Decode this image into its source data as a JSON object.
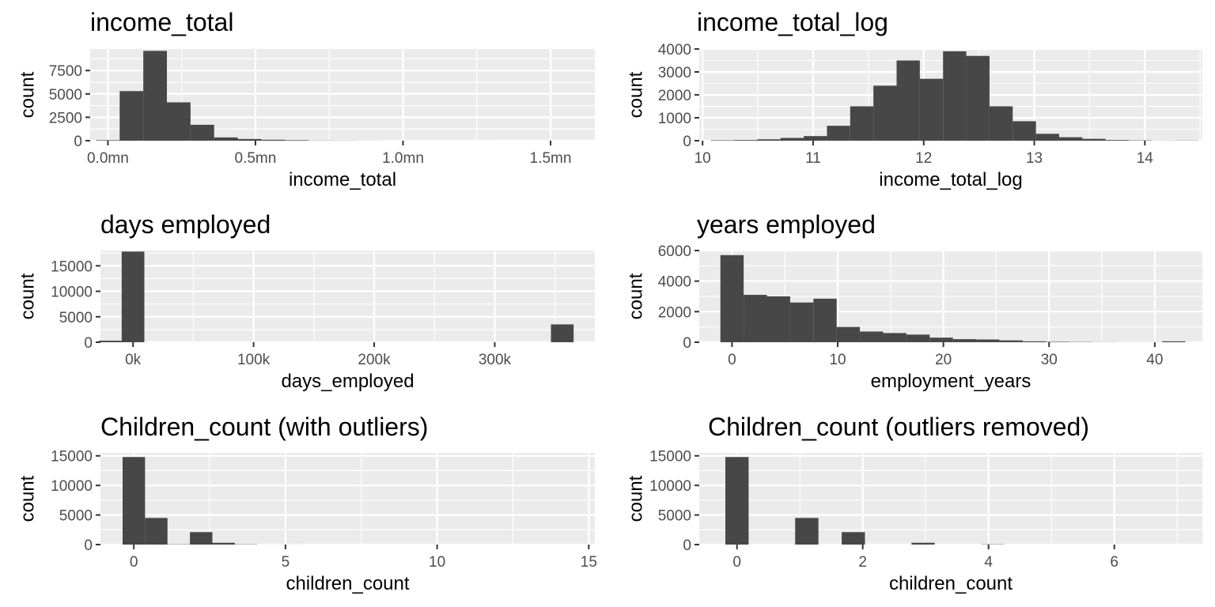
{
  "chart_data": [
    {
      "type": "bar",
      "title": "income_total",
      "xlabel": "income_total",
      "ylabel": "count",
      "xlim": [
        -0.06,
        1.65
      ],
      "ylim": [
        0,
        9800
      ],
      "x_ticks": [
        {
          "value": 0,
          "label": "0.0mn"
        },
        {
          "value": 0.5,
          "label": "0.5mn"
        },
        {
          "value": 1.0,
          "label": "1.0mn"
        },
        {
          "value": 1.5,
          "label": "1.5mn"
        }
      ],
      "y_ticks": [
        {
          "value": 0,
          "label": "0"
        },
        {
          "value": 2500,
          "label": "2500"
        },
        {
          "value": 5000,
          "label": "5000"
        },
        {
          "value": 7500,
          "label": "7500"
        }
      ],
      "grid": true,
      "bin_width": 0.08,
      "bin_centers": [
        0.0,
        0.08,
        0.16,
        0.24,
        0.32,
        0.4,
        0.48,
        0.56,
        0.64,
        0.72,
        0.8,
        0.88,
        0.96,
        1.04,
        1.12,
        1.2,
        1.28,
        1.36,
        1.44,
        1.52,
        1.6
      ],
      "values": [
        60,
        5300,
        9600,
        4100,
        1700,
        350,
        180,
        100,
        60,
        20,
        15,
        10,
        5,
        5,
        3,
        2,
        2,
        1,
        1,
        1,
        1
      ]
    },
    {
      "type": "bar",
      "title": "income_total_log",
      "xlabel": "income_total_log",
      "ylabel": "count",
      "xlim": [
        9.97,
        14.52
      ],
      "ylim": [
        0,
        4000
      ],
      "x_ticks": [
        {
          "value": 10,
          "label": "10"
        },
        {
          "value": 11,
          "label": "11"
        },
        {
          "value": 12,
          "label": "12"
        },
        {
          "value": 13,
          "label": "13"
        },
        {
          "value": 14,
          "label": "14"
        }
      ],
      "y_ticks": [
        {
          "value": 0,
          "label": "0"
        },
        {
          "value": 1000,
          "label": "1000"
        },
        {
          "value": 2000,
          "label": "2000"
        },
        {
          "value": 3000,
          "label": "3000"
        },
        {
          "value": 4000,
          "label": "4000"
        }
      ],
      "grid": true,
      "bin_width": 0.21,
      "bin_centers": [
        10.18,
        10.39,
        10.6,
        10.81,
        11.02,
        11.23,
        11.44,
        11.65,
        11.86,
        12.07,
        12.28,
        12.49,
        12.7,
        12.91,
        13.12,
        13.33,
        13.54,
        13.75,
        13.96,
        14.17,
        14.38
      ],
      "values": [
        20,
        30,
        60,
        120,
        200,
        650,
        1500,
        2400,
        3500,
        2700,
        3900,
        3700,
        1500,
        850,
        300,
        150,
        80,
        30,
        15,
        5,
        10
      ]
    },
    {
      "type": "bar",
      "title": "days employed",
      "xlabel": "days_employed",
      "ylabel": "count",
      "xlim": [
        -27000,
        383000
      ],
      "ylim": [
        0,
        18000
      ],
      "x_ticks": [
        {
          "value": 0,
          "label": "0k"
        },
        {
          "value": 100000,
          "label": "100k"
        },
        {
          "value": 200000,
          "label": "200k"
        },
        {
          "value": 300000,
          "label": "300k"
        }
      ],
      "y_ticks": [
        {
          "value": 0,
          "label": "0"
        },
        {
          "value": 5000,
          "label": "5000"
        },
        {
          "value": 10000,
          "label": "10000"
        },
        {
          "value": 15000,
          "label": "15000"
        }
      ],
      "grid": true,
      "bin_width": 18800,
      "bin_centers": [
        -18800,
        0,
        356000
      ],
      "values": [
        300,
        17800,
        3500
      ]
    },
    {
      "type": "bar",
      "title": "years employed",
      "xlabel": "employment_years",
      "ylabel": "count",
      "xlim": [
        -3.1,
        44.5
      ],
      "ylim": [
        0,
        6000
      ],
      "x_ticks": [
        {
          "value": 0,
          "label": "0"
        },
        {
          "value": 10,
          "label": "10"
        },
        {
          "value": 20,
          "label": "20"
        },
        {
          "value": 30,
          "label": "30"
        },
        {
          "value": 40,
          "label": "40"
        }
      ],
      "y_ticks": [
        {
          "value": 0,
          "label": "0"
        },
        {
          "value": 2000,
          "label": "2000"
        },
        {
          "value": 4000,
          "label": "4000"
        },
        {
          "value": 6000,
          "label": "6000"
        }
      ],
      "grid": true,
      "bin_width": 2.2,
      "bin_centers": [
        0.0,
        2.2,
        4.4,
        6.6,
        8.8,
        11.0,
        13.2,
        15.4,
        17.6,
        19.8,
        22.0,
        24.2,
        26.4,
        28.6,
        30.8,
        33.0,
        35.2,
        37.4,
        39.6,
        41.8
      ],
      "values": [
        5700,
        3100,
        3000,
        2600,
        2850,
        1000,
        700,
        600,
        500,
        300,
        200,
        180,
        120,
        60,
        30,
        20,
        10,
        5,
        5,
        60
      ]
    },
    {
      "type": "bar",
      "title": "Children_count (with outliers)",
      "xlabel": "children_count",
      "ylabel": "count",
      "xlim": [
        -1.1,
        15.2
      ],
      "ylim": [
        0,
        15500
      ],
      "x_ticks": [
        {
          "value": 0,
          "label": "0"
        },
        {
          "value": 5,
          "label": "5"
        },
        {
          "value": 10,
          "label": "10"
        },
        {
          "value": 15,
          "label": "15"
        }
      ],
      "y_ticks": [
        {
          "value": 0,
          "label": "0"
        },
        {
          "value": 5000,
          "label": "5000"
        },
        {
          "value": 10000,
          "label": "10000"
        },
        {
          "value": 15000,
          "label": "15000"
        }
      ],
      "grid": true,
      "bin_width": 0.74,
      "bin_centers": [
        0.0,
        0.74,
        1.48,
        2.22,
        2.96,
        3.7,
        4.44,
        5.18
      ],
      "values": [
        14800,
        4500,
        50,
        2100,
        300,
        50,
        5,
        10
      ]
    },
    {
      "type": "bar",
      "title": "Children_count (outliers removed)",
      "xlabel": "children_count",
      "ylabel": "count",
      "xlim": [
        -0.6,
        7.4
      ],
      "ylim": [
        0,
        15500
      ],
      "x_ticks": [
        {
          "value": 0,
          "label": "0"
        },
        {
          "value": 2,
          "label": "2"
        },
        {
          "value": 4,
          "label": "4"
        },
        {
          "value": 6,
          "label": "6"
        }
      ],
      "y_ticks": [
        {
          "value": 0,
          "label": "0"
        },
        {
          "value": 5000,
          "label": "5000"
        },
        {
          "value": 10000,
          "label": "10000"
        },
        {
          "value": 15000,
          "label": "15000"
        }
      ],
      "grid": true,
      "bin_width": 0.37,
      "bin_centers": [
        0.0,
        1.11,
        1.85,
        2.96,
        4.07
      ],
      "values": [
        14800,
        4500,
        2100,
        300,
        50
      ]
    }
  ]
}
